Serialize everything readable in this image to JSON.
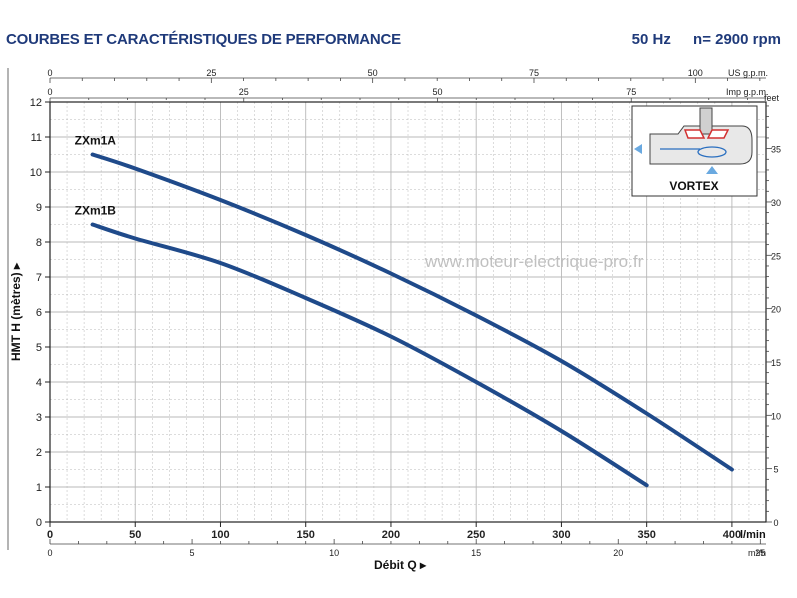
{
  "header": {
    "title": "COURBES ET CARACTÉRISTIQUES DE PERFORMANCE",
    "frequency": "50 Hz",
    "speed": "n= 2900 rpm"
  },
  "watermark": "www.moteur-electrique-pro.fr",
  "inset": {
    "label": "VORTEX"
  },
  "colors": {
    "curve": "#1f4a8a",
    "grid": "#b8b8b8",
    "title": "#1f3a7a",
    "inset_red": "#d23030",
    "inset_arrow": "#6aa9e0"
  },
  "chart_data": {
    "type": "line",
    "title": "",
    "xlabel": "Débit Q",
    "ylabel": "HMT H (mètres)",
    "xunit": "l/min",
    "xlim": [
      0,
      420
    ],
    "ylim": [
      0,
      12
    ],
    "grid": true,
    "xticks": [
      0,
      50,
      100,
      150,
      200,
      250,
      300,
      350,
      400
    ],
    "yticks": [
      0,
      1,
      2,
      3,
      4,
      5,
      6,
      7,
      8,
      9,
      10,
      11,
      12
    ],
    "secondary_axes": {
      "m3h": {
        "unit": "m³/h",
        "ticks": [
          0,
          5,
          10,
          15,
          20,
          25
        ]
      },
      "us_gpm": {
        "unit": "US g.p.m.",
        "ticks": [
          0,
          25,
          50,
          75,
          100
        ]
      },
      "imp_gpm": {
        "unit": "Imp g.p.m.",
        "ticks": [
          0,
          25,
          50,
          75
        ]
      },
      "feet": {
        "unit": "feet",
        "ticks": [
          0,
          5,
          10,
          15,
          20,
          25,
          30,
          35
        ]
      }
    },
    "series": [
      {
        "name": "ZXm1A",
        "x": [
          25,
          50,
          100,
          150,
          200,
          250,
          300,
          350,
          400
        ],
        "y": [
          10.5,
          10.1,
          9.2,
          8.2,
          7.1,
          5.9,
          4.6,
          3.1,
          1.5
        ]
      },
      {
        "name": "ZXm1B",
        "x": [
          25,
          50,
          100,
          150,
          200,
          250,
          300,
          350
        ],
        "y": [
          8.5,
          8.1,
          7.4,
          6.4,
          5.3,
          4.0,
          2.6,
          1.05
        ]
      }
    ]
  }
}
